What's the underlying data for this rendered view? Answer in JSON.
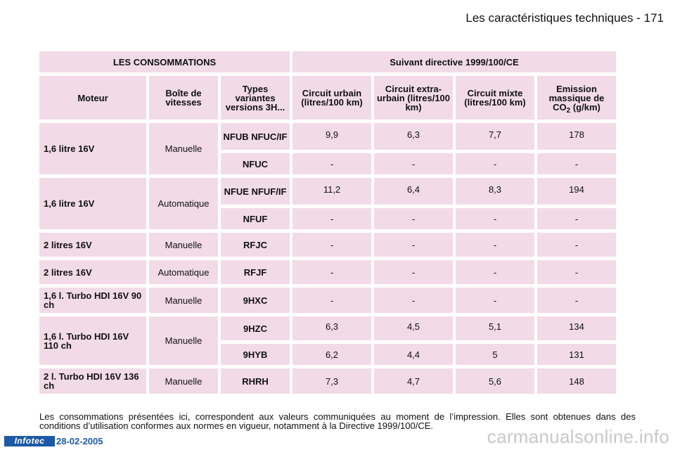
{
  "header": {
    "title": "Les caractéristiques techniques - 171"
  },
  "table": {
    "section_left": "LES CONSOMMATIONS",
    "section_right": "Suivant directive 1999/100/CE",
    "columns": {
      "moteur": "Moteur",
      "boite": "Boîte de vitesses",
      "types": "Types variantes versions 3H...",
      "urbain": "Circuit urbain (litres/100 km)",
      "extra": "Circuit extra-urbain (litres/100 km)",
      "mixte": "Circuit mixte (litres/100 km)",
      "emission_a": "Emission massique de CO",
      "emission_sub": "2",
      "emission_b": " (g/km)"
    },
    "rows": [
      {
        "moteur": "1,6 litre 16V",
        "boite": "Manuelle",
        "variants": [
          {
            "type": "NFUB NFUC/IF",
            "urbain": "9,9",
            "extra": "6,3",
            "mixte": "7,7",
            "co2": "178"
          },
          {
            "type": "NFUC",
            "urbain": "-",
            "extra": "-",
            "mixte": "-",
            "co2": "-"
          }
        ]
      },
      {
        "moteur": "1,6 litre 16V",
        "boite": "Automatique",
        "variants": [
          {
            "type": "NFUE NFUF/IF",
            "urbain": "11,2",
            "extra": "6,4",
            "mixte": "8,3",
            "co2": "194"
          },
          {
            "type": "NFUF",
            "urbain": "-",
            "extra": "-",
            "mixte": "-",
            "co2": "-"
          }
        ]
      },
      {
        "moteur": "2 litres 16V",
        "boite": "Manuelle",
        "variants": [
          {
            "type": "RFJC",
            "urbain": "-",
            "extra": "-",
            "mixte": "-",
            "co2": "-"
          }
        ]
      },
      {
        "moteur": "2 litres 16V",
        "boite": "Automatique",
        "variants": [
          {
            "type": "RFJF",
            "urbain": "-",
            "extra": "-",
            "mixte": "-",
            "co2": "-"
          }
        ]
      },
      {
        "moteur": "1,6 l. Turbo HDI 16V 90 ch",
        "boite": "Manuelle",
        "variants": [
          {
            "type": "9HXC",
            "urbain": "-",
            "extra": "-",
            "mixte": "-",
            "co2": "-"
          }
        ]
      },
      {
        "moteur": "1,6 l. Turbo HDI 16V 110 ch",
        "boite": "Manuelle",
        "variants": [
          {
            "type": "9HZC",
            "urbain": "6,3",
            "extra": "4,5",
            "mixte": "5,1",
            "co2": "134"
          },
          {
            "type": "9HYB",
            "urbain": "6,2",
            "extra": "4,4",
            "mixte": "5",
            "co2": "131"
          }
        ]
      },
      {
        "moteur": "2 l. Turbo HDI 16V 136 ch",
        "boite": "Manuelle",
        "variants": [
          {
            "type": "RHRH",
            "urbain": "7,3",
            "extra": "4,7",
            "mixte": "5,6",
            "co2": "148"
          }
        ]
      }
    ]
  },
  "note": "Les consommations présentées ici, correspondent aux valeurs communiquées au moment de l’impression. Elles sont obtenues dans des conditions d’utilisation conformes aux normes en vigueur, notamment à la Directive 1999/100/CE.",
  "footer": {
    "logo": "Infotec",
    "date": "28-02-2005"
  },
  "watermark": "carmanualsonline.info"
}
